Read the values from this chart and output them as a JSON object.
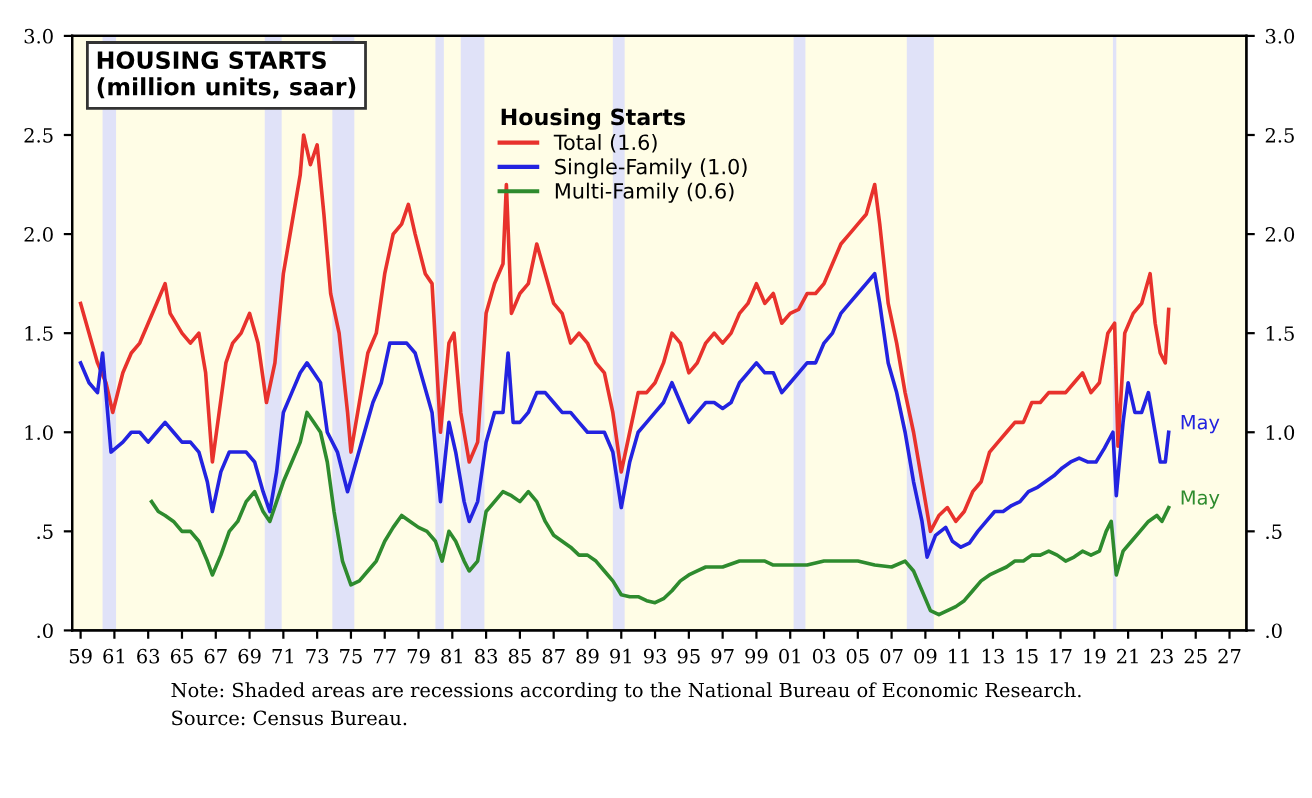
{
  "chart_data": {
    "type": "line",
    "title": "HOUSING STARTS\n(million units, saar)",
    "legend_title": "Housing Starts",
    "legend": "top",
    "grid": false,
    "series": [
      {
        "name": "Total (1.6)",
        "color": "#e8322c",
        "x": [
          1959.0,
          1959.5,
          1960.0,
          1960.5,
          1960.9,
          1961.5,
          1962.0,
          1962.5,
          1963.0,
          1963.5,
          1964.0,
          1964.3,
          1965.0,
          1965.5,
          1966.0,
          1966.4,
          1966.8,
          1967.2,
          1967.6,
          1968.0,
          1968.5,
          1969.0,
          1969.5,
          1970.0,
          1970.5,
          1971.0,
          1971.5,
          1972.0,
          1972.2,
          1972.6,
          1973.0,
          1973.4,
          1973.8,
          1974.3,
          1974.8,
          1975.0,
          1975.5,
          1976.0,
          1976.5,
          1977.0,
          1977.5,
          1978.0,
          1978.4,
          1978.8,
          1979.4,
          1979.8,
          1980.3,
          1980.8,
          1981.1,
          1981.5,
          1982.0,
          1982.5,
          1983.0,
          1983.5,
          1984.0,
          1984.2,
          1984.5,
          1985.0,
          1985.5,
          1986.0,
          1986.5,
          1987.0,
          1987.5,
          1988.0,
          1988.5,
          1989.0,
          1989.5,
          1990.0,
          1990.5,
          1991.0,
          1991.5,
          1992.0,
          1992.5,
          1993.0,
          1993.5,
          1994.0,
          1994.5,
          1995.0,
          1995.5,
          1996.0,
          1996.5,
          1997.0,
          1997.5,
          1998.0,
          1998.5,
          1999.0,
          1999.5,
          2000.0,
          2000.5,
          2001.0,
          2001.5,
          2002.0,
          2002.5,
          2003.0,
          2003.5,
          2004.0,
          2004.5,
          2005.0,
          2005.5,
          2006.0,
          2006.3,
          2006.8,
          2007.3,
          2007.8,
          2008.3,
          2008.8,
          2009.3,
          2009.8,
          2010.3,
          2010.8,
          2011.3,
          2011.8,
          2012.3,
          2012.8,
          2013.3,
          2013.8,
          2014.3,
          2014.8,
          2015.3,
          2015.8,
          2016.3,
          2016.8,
          2017.3,
          2017.8,
          2018.3,
          2018.8,
          2019.3,
          2019.8,
          2020.2,
          2020.4,
          2020.8,
          2021.3,
          2021.8,
          2022.3,
          2022.6,
          2022.9,
          2023.2,
          2023.4
        ],
        "values": [
          1.65,
          1.5,
          1.35,
          1.25,
          1.1,
          1.3,
          1.4,
          1.45,
          1.55,
          1.65,
          1.75,
          1.6,
          1.5,
          1.45,
          1.5,
          1.3,
          0.85,
          1.1,
          1.35,
          1.45,
          1.5,
          1.6,
          1.45,
          1.15,
          1.35,
          1.8,
          2.05,
          2.3,
          2.5,
          2.35,
          2.45,
          2.1,
          1.7,
          1.5,
          1.1,
          0.9,
          1.15,
          1.4,
          1.5,
          1.8,
          2.0,
          2.05,
          2.15,
          2.0,
          1.8,
          1.75,
          1.0,
          1.45,
          1.5,
          1.1,
          0.85,
          0.95,
          1.6,
          1.75,
          1.85,
          2.25,
          1.6,
          1.7,
          1.75,
          1.95,
          1.8,
          1.65,
          1.6,
          1.45,
          1.5,
          1.45,
          1.35,
          1.3,
          1.1,
          0.8,
          1.0,
          1.2,
          1.2,
          1.25,
          1.35,
          1.5,
          1.45,
          1.3,
          1.35,
          1.45,
          1.5,
          1.45,
          1.5,
          1.6,
          1.65,
          1.75,
          1.65,
          1.7,
          1.55,
          1.6,
          1.62,
          1.7,
          1.7,
          1.75,
          1.85,
          1.95,
          2.0,
          2.05,
          2.1,
          2.25,
          2.05,
          1.65,
          1.45,
          1.2,
          1.0,
          0.75,
          0.5,
          0.58,
          0.62,
          0.55,
          0.6,
          0.7,
          0.75,
          0.9,
          0.95,
          1.0,
          1.05,
          1.05,
          1.15,
          1.15,
          1.2,
          1.2,
          1.2,
          1.25,
          1.3,
          1.2,
          1.25,
          1.5,
          1.55,
          0.93,
          1.5,
          1.6,
          1.65,
          1.8,
          1.55,
          1.4,
          1.35,
          1.62
        ]
      },
      {
        "name": "Single-Family (1.0)",
        "color": "#2323e0",
        "x": [
          1959.0,
          1959.5,
          1960.0,
          1960.3,
          1960.8,
          1961.5,
          1962.0,
          1962.5,
          1963.0,
          1963.5,
          1964.0,
          1964.5,
          1965.0,
          1965.5,
          1966.0,
          1966.5,
          1966.8,
          1967.3,
          1967.8,
          1968.3,
          1968.8,
          1969.3,
          1969.8,
          1970.2,
          1970.6,
          1971.0,
          1971.5,
          1972.0,
          1972.4,
          1972.8,
          1973.2,
          1973.6,
          1974.2,
          1974.8,
          1975.3,
          1975.8,
          1976.3,
          1976.8,
          1977.3,
          1977.8,
          1978.3,
          1978.8,
          1979.3,
          1979.8,
          1980.3,
          1980.8,
          1981.2,
          1981.7,
          1982.0,
          1982.5,
          1983.0,
          1983.5,
          1984.0,
          1984.3,
          1984.6,
          1985.0,
          1985.5,
          1986.0,
          1986.5,
          1987.0,
          1987.5,
          1988.0,
          1988.5,
          1989.0,
          1989.5,
          1990.0,
          1990.5,
          1991.0,
          1991.5,
          1992.0,
          1992.5,
          1993.0,
          1993.5,
          1994.0,
          1994.5,
          1995.0,
          1995.5,
          1996.0,
          1996.5,
          1997.0,
          1997.5,
          1998.0,
          1998.5,
          1999.0,
          1999.5,
          2000.0,
          2000.5,
          2001.0,
          2001.5,
          2002.0,
          2002.5,
          2003.0,
          2003.5,
          2004.0,
          2004.5,
          2005.0,
          2005.5,
          2006.0,
          2006.3,
          2006.8,
          2007.3,
          2007.8,
          2008.3,
          2008.8,
          2009.1,
          2009.6,
          2010.2,
          2010.6,
          2011.1,
          2011.6,
          2012.1,
          2012.6,
          2013.1,
          2013.6,
          2014.1,
          2014.6,
          2015.1,
          2015.6,
          2016.1,
          2016.6,
          2017.1,
          2017.6,
          2018.1,
          2018.6,
          2019.1,
          2019.6,
          2020.1,
          2020.3,
          2020.7,
          2021.0,
          2021.4,
          2021.8,
          2022.2,
          2022.6,
          2022.9,
          2023.2,
          2023.4
        ],
        "values": [
          1.35,
          1.25,
          1.2,
          1.4,
          0.9,
          0.95,
          1.0,
          1.0,
          0.95,
          1.0,
          1.05,
          1.0,
          0.95,
          0.95,
          0.9,
          0.75,
          0.6,
          0.8,
          0.9,
          0.9,
          0.9,
          0.85,
          0.7,
          0.6,
          0.8,
          1.1,
          1.2,
          1.3,
          1.35,
          1.3,
          1.25,
          1.0,
          0.9,
          0.7,
          0.85,
          1.0,
          1.15,
          1.25,
          1.45,
          1.45,
          1.45,
          1.4,
          1.25,
          1.1,
          0.65,
          1.05,
          0.9,
          0.65,
          0.55,
          0.65,
          0.95,
          1.1,
          1.1,
          1.4,
          1.05,
          1.05,
          1.1,
          1.2,
          1.2,
          1.15,
          1.1,
          1.1,
          1.05,
          1.0,
          1.0,
          1.0,
          0.9,
          0.62,
          0.85,
          1.0,
          1.05,
          1.1,
          1.15,
          1.25,
          1.15,
          1.05,
          1.1,
          1.15,
          1.15,
          1.12,
          1.15,
          1.25,
          1.3,
          1.35,
          1.3,
          1.3,
          1.2,
          1.25,
          1.3,
          1.35,
          1.35,
          1.45,
          1.5,
          1.6,
          1.65,
          1.7,
          1.75,
          1.8,
          1.65,
          1.35,
          1.2,
          1.0,
          0.75,
          0.55,
          0.37,
          0.48,
          0.52,
          0.45,
          0.42,
          0.44,
          0.5,
          0.55,
          0.6,
          0.6,
          0.63,
          0.65,
          0.7,
          0.72,
          0.75,
          0.78,
          0.82,
          0.85,
          0.87,
          0.85,
          0.85,
          0.92,
          1.0,
          0.68,
          1.05,
          1.25,
          1.1,
          1.1,
          1.2,
          1.0,
          0.85,
          0.85,
          1.0
        ]
      },
      {
        "name": "Multi-Family (0.6)",
        "color": "#2e8b2e",
        "x": [
          1963.2,
          1963.6,
          1964.0,
          1964.5,
          1965.0,
          1965.5,
          1966.0,
          1966.5,
          1966.8,
          1967.3,
          1967.8,
          1968.3,
          1968.8,
          1969.3,
          1969.8,
          1970.2,
          1970.6,
          1971.0,
          1971.5,
          1972.0,
          1972.4,
          1972.8,
          1973.2,
          1973.6,
          1974.0,
          1974.5,
          1975.0,
          1975.5,
          1976.0,
          1976.5,
          1977.0,
          1977.5,
          1978.0,
          1978.5,
          1979.0,
          1979.5,
          1980.0,
          1980.4,
          1980.8,
          1981.2,
          1981.7,
          1982.0,
          1982.5,
          1983.0,
          1983.5,
          1984.0,
          1984.5,
          1985.0,
          1985.5,
          1986.0,
          1986.5,
          1987.0,
          1987.5,
          1988.0,
          1988.5,
          1989.0,
          1989.5,
          1990.0,
          1990.5,
          1991.0,
          1991.5,
          1992.0,
          1992.5,
          1993.0,
          1993.5,
          1994.0,
          1994.5,
          1995.0,
          1995.5,
          1996.0,
          1997.0,
          1998.0,
          1999.0,
          1999.5,
          2000.0,
          2001.0,
          2002.0,
          2003.0,
          2004.0,
          2005.0,
          2006.0,
          2007.0,
          2007.8,
          2008.3,
          2008.8,
          2009.3,
          2009.8,
          2010.3,
          2010.8,
          2011.3,
          2011.8,
          2012.3,
          2012.8,
          2013.3,
          2013.8,
          2014.3,
          2014.8,
          2015.3,
          2015.8,
          2016.3,
          2016.8,
          2017.3,
          2017.8,
          2018.3,
          2018.8,
          2019.3,
          2019.7,
          2020.0,
          2020.3,
          2020.7,
          2021.2,
          2021.7,
          2022.2,
          2022.7,
          2023.0,
          2023.4
        ],
        "values": [
          0.65,
          0.6,
          0.58,
          0.55,
          0.5,
          0.5,
          0.45,
          0.35,
          0.28,
          0.38,
          0.5,
          0.55,
          0.65,
          0.7,
          0.6,
          0.55,
          0.65,
          0.75,
          0.85,
          0.95,
          1.1,
          1.05,
          1.0,
          0.85,
          0.6,
          0.35,
          0.23,
          0.25,
          0.3,
          0.35,
          0.45,
          0.52,
          0.58,
          0.55,
          0.52,
          0.5,
          0.45,
          0.35,
          0.5,
          0.45,
          0.35,
          0.3,
          0.35,
          0.6,
          0.65,
          0.7,
          0.68,
          0.65,
          0.7,
          0.65,
          0.55,
          0.48,
          0.45,
          0.42,
          0.38,
          0.38,
          0.35,
          0.3,
          0.25,
          0.18,
          0.17,
          0.17,
          0.15,
          0.14,
          0.16,
          0.2,
          0.25,
          0.28,
          0.3,
          0.32,
          0.32,
          0.35,
          0.35,
          0.35,
          0.33,
          0.33,
          0.33,
          0.35,
          0.35,
          0.35,
          0.33,
          0.32,
          0.35,
          0.3,
          0.2,
          0.1,
          0.08,
          0.1,
          0.12,
          0.15,
          0.2,
          0.25,
          0.28,
          0.3,
          0.32,
          0.35,
          0.35,
          0.38,
          0.38,
          0.4,
          0.38,
          0.35,
          0.37,
          0.4,
          0.38,
          0.4,
          0.5,
          0.55,
          0.28,
          0.4,
          0.45,
          0.5,
          0.55,
          0.58,
          0.55,
          0.62
        ]
      }
    ],
    "xlim": [
      1958.5,
      2028
    ],
    "xticks": [
      {
        "value": 1959,
        "label": "59"
      },
      {
        "value": 1961,
        "label": "61"
      },
      {
        "value": 1963,
        "label": "63"
      },
      {
        "value": 1965,
        "label": "65"
      },
      {
        "value": 1967,
        "label": "67"
      },
      {
        "value": 1969,
        "label": "69"
      },
      {
        "value": 1971,
        "label": "71"
      },
      {
        "value": 1973,
        "label": "73"
      },
      {
        "value": 1975,
        "label": "75"
      },
      {
        "value": 1977,
        "label": "77"
      },
      {
        "value": 1979,
        "label": "79"
      },
      {
        "value": 1981,
        "label": "81"
      },
      {
        "value": 1983,
        "label": "83"
      },
      {
        "value": 1985,
        "label": "85"
      },
      {
        "value": 1987,
        "label": "87"
      },
      {
        "value": 1989,
        "label": "89"
      },
      {
        "value": 1991,
        "label": "91"
      },
      {
        "value": 1993,
        "label": "93"
      },
      {
        "value": 1995,
        "label": "95"
      },
      {
        "value": 1997,
        "label": "97"
      },
      {
        "value": 1999,
        "label": "99"
      },
      {
        "value": 2001,
        "label": "01"
      },
      {
        "value": 2003,
        "label": "03"
      },
      {
        "value": 2005,
        "label": "05"
      },
      {
        "value": 2007,
        "label": "07"
      },
      {
        "value": 2009,
        "label": "09"
      },
      {
        "value": 2011,
        "label": "11"
      },
      {
        "value": 2013,
        "label": "13"
      },
      {
        "value": 2015,
        "label": "15"
      },
      {
        "value": 2017,
        "label": "17"
      },
      {
        "value": 2019,
        "label": "19"
      },
      {
        "value": 2021,
        "label": "21"
      },
      {
        "value": 2023,
        "label": "23"
      },
      {
        "value": 2025,
        "label": "25"
      },
      {
        "value": 2027,
        "label": "27"
      }
    ],
    "ylim": [
      0,
      3
    ],
    "yticks": [
      {
        "value": 0,
        "label": ".0"
      },
      {
        "value": 0.5,
        "label": ".5"
      },
      {
        "value": 1,
        "label": "1.0"
      },
      {
        "value": 1.5,
        "label": "1.5"
      },
      {
        "value": 2,
        "label": "2.0"
      },
      {
        "value": 2.5,
        "label": "2.5"
      },
      {
        "value": 3,
        "label": "3.0"
      }
    ],
    "y2lim": [
      0,
      3
    ],
    "y2ticks": [
      {
        "value": 0,
        "label": ".0"
      },
      {
        "value": 0.5,
        "label": ".5"
      },
      {
        "value": 1,
        "label": "1.0"
      },
      {
        "value": 1.5,
        "label": "1.5"
      },
      {
        "value": 2,
        "label": "2.0"
      },
      {
        "value": 2.5,
        "label": "2.5"
      },
      {
        "value": 3,
        "label": "3.0"
      }
    ],
    "bands": [
      {
        "axis": "x",
        "from": 1960.3,
        "to": 1961.1,
        "color": "#e0e2f8"
      },
      {
        "axis": "x",
        "from": 1969.9,
        "to": 1970.9,
        "color": "#e0e2f8"
      },
      {
        "axis": "x",
        "from": 1973.9,
        "to": 1975.2,
        "color": "#e0e2f8"
      },
      {
        "axis": "x",
        "from": 1980.0,
        "to": 1980.5,
        "color": "#e0e2f8"
      },
      {
        "axis": "x",
        "from": 1981.5,
        "to": 1982.9,
        "color": "#e0e2f8"
      },
      {
        "axis": "x",
        "from": 1990.5,
        "to": 1991.2,
        "color": "#e0e2f8"
      },
      {
        "axis": "x",
        "from": 2001.2,
        "to": 2001.9,
        "color": "#e0e2f8"
      },
      {
        "axis": "x",
        "from": 2007.9,
        "to": 2009.5,
        "color": "#e0e2f8"
      },
      {
        "axis": "x",
        "from": 2020.1,
        "to": 2020.3,
        "color": "#e0e2f8"
      }
    ],
    "annotations": [
      {
        "text": "May",
        "x": 2023.4,
        "y": 1.0
      },
      {
        "text": "May",
        "x": 2023.4,
        "y": 0.62
      },
      "Note: Shaded areas are recessions according to the National Bureau of Economic Research.",
      "Source: Census Bureau."
    ]
  }
}
